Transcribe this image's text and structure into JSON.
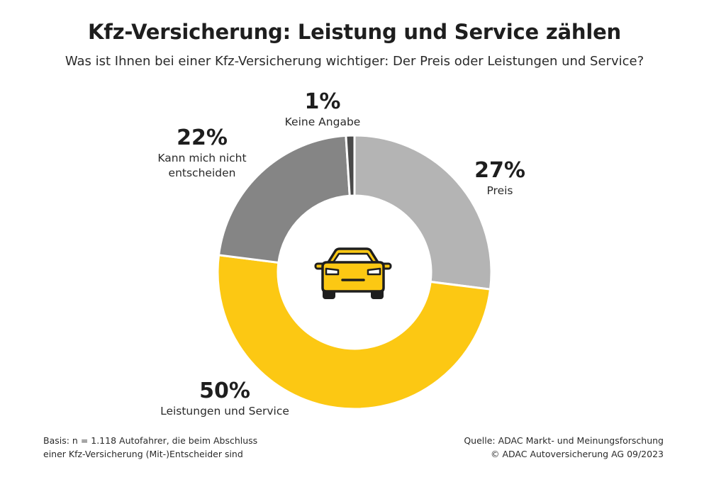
{
  "title": "Kfz-Versicherung: Leistung und Service zählen",
  "subtitle": "Was ist Ihnen bei einer Kfz-Versicherung wichtiger: Der Preis oder Leistungen und Service?",
  "chart_data": {
    "type": "pie",
    "variant": "donut",
    "title": "Kfz-Versicherung: Leistung und Service zählen",
    "subtitle": "Was ist Ihnen bei einer Kfz-Versicherung wichtiger: Der Preis oder Leistungen und Service?",
    "unit": "%",
    "slices": [
      {
        "label": "Preis",
        "value": 27,
        "value_label": "27%",
        "color": "#b4b4b4",
        "label_lines": [
          "Preis"
        ]
      },
      {
        "label": "Leistungen und Service",
        "value": 50,
        "value_label": "50%",
        "color": "#fcc813",
        "label_lines": [
          "Leistungen und Service"
        ]
      },
      {
        "label": "Kann mich nicht entscheiden",
        "value": 22,
        "value_label": "22%",
        "color": "#858585",
        "label_lines": [
          "Kann mich nicht",
          "entscheiden"
        ]
      },
      {
        "label": "Keine Angabe",
        "value": 1,
        "value_label": "1%",
        "color": "#4a4a4a",
        "label_lines": [
          "Keine Angabe"
        ]
      }
    ],
    "center_icon": "car-icon"
  },
  "footer": {
    "basis_lines": [
      "Basis: n = 1.118 Autofahrer, die beim Abschluss",
      "einer Kfz-Versicherung (Mit-)Entscheider sind"
    ],
    "source_lines": [
      "Quelle: ADAC Markt- und Meinungsforschung",
      "© ADAC Autoversicherung AG 09/2023"
    ]
  }
}
